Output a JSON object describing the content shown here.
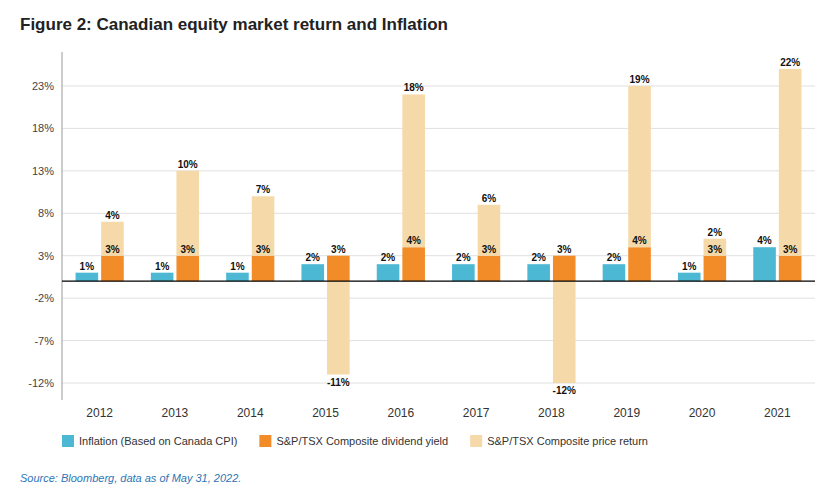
{
  "chart_data": {
    "type": "bar",
    "title": "Figure 2: Canadian equity market return and Inflation",
    "categories": [
      "2012",
      "2013",
      "2014",
      "2015",
      "2016",
      "2017",
      "2018",
      "2019",
      "2020",
      "2021"
    ],
    "series": [
      {
        "name": "Inflation (Based on Canada CPI)",
        "color": "#4db8d4",
        "values": [
          1,
          1,
          1,
          2,
          2,
          2,
          2,
          2,
          1,
          4
        ],
        "value_labels": [
          "1%",
          "1%",
          "1%",
          "2%",
          "2%",
          "2%",
          "2%",
          "2%",
          "1%",
          "4%"
        ]
      },
      {
        "name": "S&P/TSX Composite dividend yield",
        "color": "#f28c28",
        "stacked": true,
        "values": [
          3,
          3,
          3,
          3,
          4,
          3,
          3,
          4,
          3,
          3
        ],
        "value_labels": [
          "3%",
          "3%",
          "3%",
          "3%",
          "4%",
          "3%",
          "3%",
          "4%",
          "3%",
          "3%"
        ]
      },
      {
        "name": "S&P/TSX Composite price return",
        "color": "#f5d9a8",
        "stacked": true,
        "values": [
          4,
          10,
          7,
          -11,
          18,
          6,
          -12,
          19,
          2,
          22
        ],
        "value_labels": [
          "4%",
          "10%",
          "7%",
          "-11%",
          "18%",
          "6%",
          "-12%",
          "19%",
          "2%",
          "22%"
        ]
      }
    ],
    "ylim": [
      -14,
      27
    ],
    "yticks": [
      {
        "value": -12,
        "label": "-12%"
      },
      {
        "value": -7,
        "label": "-7%"
      },
      {
        "value": -2,
        "label": "-2%"
      },
      {
        "value": 3,
        "label": "3%"
      },
      {
        "value": 8,
        "label": "8%"
      },
      {
        "value": 13,
        "label": "13%"
      },
      {
        "value": 18,
        "label": "18%"
      },
      {
        "value": 23,
        "label": "23%"
      }
    ],
    "grid": true,
    "legend": "bottom",
    "data_labels": true,
    "annotations": [
      {
        "text": "Source: Bloomberg, data as of May 31, 2022.",
        "color": "#2e75b6"
      }
    ]
  }
}
